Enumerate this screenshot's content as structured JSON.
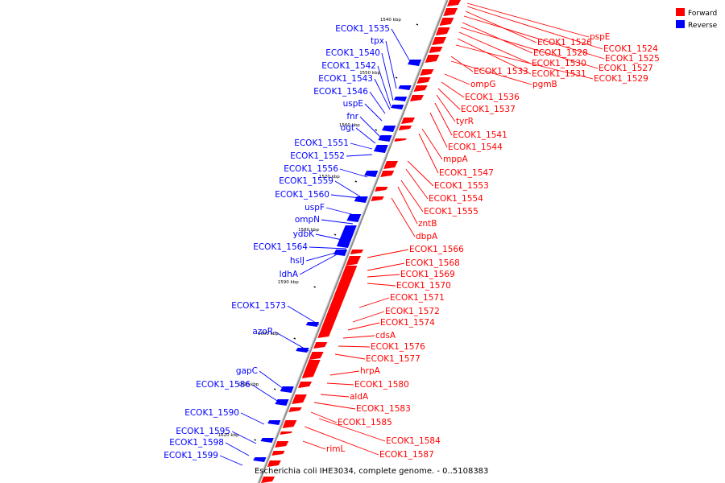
{
  "caption": "Escherichia coli IHE3034, complete genome. - 0..5108383",
  "legend": [
    {
      "label": "Forward",
      "color": "#ff0000"
    },
    {
      "label": "Reverse",
      "color": "#0000ff"
    }
  ],
  "colors": {
    "forward": "#ff0000",
    "reverse": "#0000ff",
    "backbone": "#8c8c8c"
  },
  "ticks": [
    "1540 kbp",
    "1550 kbp",
    "1560 kbp",
    "1570 kbp",
    "1580 kbp",
    "1590 kbp",
    "1600 kbp",
    "1610 kbp",
    "1620 kbp"
  ],
  "reverse_genes": [
    "ECOK1_1535",
    "tpx",
    "ECOK1_1540",
    "ECOK1_1542",
    "ECOK1_1543",
    "ECOK1_1546",
    "uspE",
    "fnr",
    "ogt",
    "ECOK1_1551",
    "ECOK1_1552",
    "ECOK1_1556",
    "ECOK1_1559",
    "ECOK1_1560",
    "uspF",
    "ompN",
    "ydbK",
    "ECOK1_1564",
    "hslJ",
    "ldhA",
    "ECOK1_1573",
    "azoR",
    "gapC",
    "ECOK1_1586",
    "ECOK1_1590",
    "ECOK1_1595",
    "ECOK1_1598",
    "ECOK1_1599"
  ],
  "forward_genes": [
    "pspE",
    "ECOK1_1524",
    "ECOK1_1526",
    "ECOK1_1525",
    "ECOK1_1528",
    "ECOK1_1527",
    "ECOK1_1530",
    "ECOK1_1531",
    "ECOK1_1529",
    "ECOK1_1533",
    "pgmB",
    "ompG",
    "ECOK1_1536",
    "ECOK1_1537",
    "tyrR",
    "ECOK1_1541",
    "ECOK1_1544",
    "mppA",
    "ECOK1_1547",
    "ECOK1_1553",
    "ECOK1_1554",
    "ECOK1_1555",
    "zntB",
    "dbpA",
    "ECOK1_1566",
    "ECOK1_1568",
    "ECOK1_1569",
    "ECOK1_1570",
    "ECOK1_1571",
    "ECOK1_1572",
    "ECOK1_1574",
    "cdsA",
    "ECOK1_1576",
    "ECOK1_1577",
    "hrpA",
    "ECOK1_1580",
    "aldA",
    "ECOK1_1583",
    "ECOK1_1585",
    "ECOK1_1584",
    "rimL",
    "ECOK1_1587"
  ]
}
